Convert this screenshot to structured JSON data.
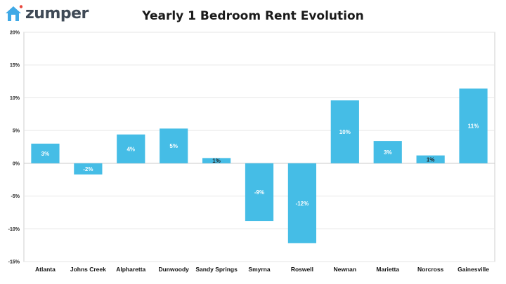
{
  "brand": {
    "name": "zumper",
    "icon": "house-icon",
    "accent_color": "#e8473d",
    "house_color": "#3fa9e6"
  },
  "chart_data": {
    "type": "bar",
    "title": "Yearly 1 Bedroom Rent Evolution",
    "xlabel": "",
    "ylabel": "",
    "categories": [
      "Atlanta",
      "Johns Creek",
      "Alpharetta",
      "Dunwoody",
      "Sandy Springs",
      "Smyrna",
      "Roswell",
      "Newnan",
      "Marietta",
      "Norcross",
      "Gainesville"
    ],
    "values": [
      3,
      -1.7,
      4.4,
      5.3,
      0.8,
      -8.8,
      -12.2,
      9.6,
      3.4,
      1.2,
      11.4
    ],
    "data_labels": [
      "3%",
      "-2%",
      "4%",
      "5%",
      "1%",
      "-9%",
      "-12%",
      "10%",
      "3%",
      "1%",
      "11%"
    ],
    "ylim": [
      -15,
      20
    ],
    "yticks": [
      20,
      15,
      10,
      5,
      0,
      -5,
      -10,
      -15
    ],
    "ytick_labels": [
      "20%",
      "15%",
      "10%",
      "5%",
      "0%",
      "-5%",
      "-10%",
      "-15%"
    ],
    "grid": true,
    "bar_color": "#45bde6",
    "label_color": "#ffffff"
  }
}
